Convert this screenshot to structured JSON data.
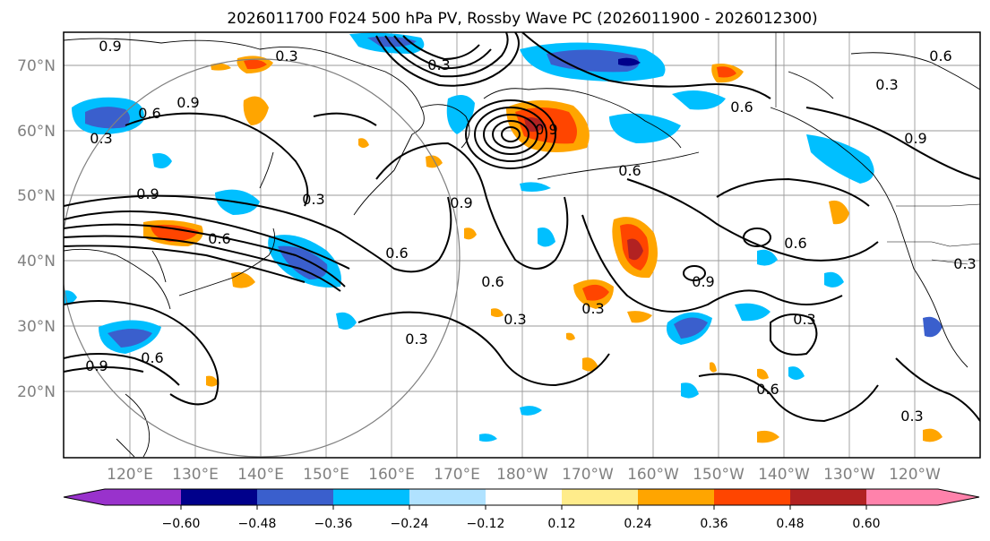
{
  "title": "2026011700 F024 500 hPa PV, Rossby Wave PC (2026011900 - 2026012300)",
  "map": {
    "lat_ticks": [
      "70°N",
      "60°N",
      "50°N",
      "40°N",
      "30°N",
      "20°N"
    ],
    "lon_ticks": [
      "120°E",
      "130°E",
      "140°E",
      "150°E",
      "160°E",
      "170°E",
      "180°W",
      "170°W",
      "160°W",
      "150°W",
      "140°W",
      "130°W",
      "120°W"
    ],
    "contour_labels": [
      "0.9",
      "0.3",
      "0.6",
      "0.9",
      "0.3",
      "0.9",
      "0.3",
      "0.6",
      "0.9",
      "0.3",
      "0.6",
      "0.6",
      "0.9",
      "0.3",
      "0.9",
      "0.6",
      "0.6",
      "0.3",
      "0.6",
      "0.3",
      "0.9",
      "0.6",
      "0.3",
      "0.3",
      "0.3",
      "0.6",
      "0.3",
      "0.9",
      "0.6"
    ]
  },
  "colorbar": {
    "ticks": [
      "−0.60",
      "−0.48",
      "−0.36",
      "−0.24",
      "−0.12",
      "0.12",
      "0.24",
      "0.36",
      "0.48",
      "0.60"
    ],
    "colors": [
      "#9932cc",
      "#00008b",
      "#3a5fcd",
      "#00bfff",
      "#b0e2ff",
      "#ffffff",
      "#ffec8b",
      "#ffa500",
      "#ff4500",
      "#b22222",
      "#ff82ab",
      "#ff82ab"
    ]
  },
  "colors": {
    "neg_strong": "#3a5fcd",
    "neg_mid": "#00bfff",
    "neg_weak": "#b0e2ff",
    "neg_dark": "#00008b",
    "pos_weak": "#ffec8b",
    "pos_mid": "#ffa500",
    "pos_strong": "#ff4500",
    "pos_dark": "#b22222"
  }
}
